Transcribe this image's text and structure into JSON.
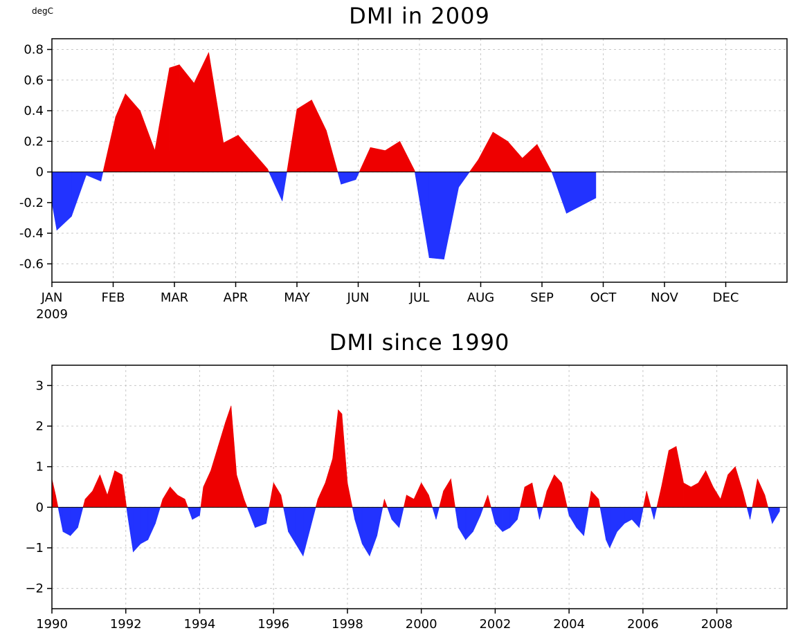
{
  "colors": {
    "positive": "#ee0000",
    "negative": "#2233ff"
  },
  "chart_data": [
    {
      "type": "area",
      "title": "DMI in 2009",
      "ylabel": "degC",
      "ylim": [
        -0.72,
        0.87
      ],
      "xlim": [
        0,
        12
      ],
      "grid": true,
      "yticks": [
        0.8,
        0.6,
        0.4,
        0.2,
        0,
        -0.2,
        -0.4,
        -0.6
      ],
      "ytick_labels": [
        "0.8",
        "0.6",
        "0.4",
        "0.2",
        "0",
        "-0.2",
        "-0.4",
        "-0.6"
      ],
      "xticks": [
        0,
        1,
        2,
        3,
        4,
        5,
        6,
        7,
        8,
        9,
        10,
        11
      ],
      "xtick_labels": [
        "JAN",
        "FEB",
        "MAR",
        "APR",
        "MAY",
        "JUN",
        "JUL",
        "AUG",
        "SEP",
        "OCT",
        "NOV",
        "DEC"
      ],
      "year_label": "2009",
      "x": [
        0.0,
        0.08,
        0.32,
        0.56,
        0.8,
        1.04,
        1.2,
        1.44,
        1.68,
        1.92,
        2.08,
        2.32,
        2.56,
        2.8,
        3.04,
        3.28,
        3.52,
        3.76,
        4.0,
        4.24,
        4.48,
        4.72,
        4.96,
        5.2,
        5.44,
        5.68,
        5.92,
        6.16,
        6.4,
        6.64,
        6.96,
        7.2,
        7.44,
        7.68,
        7.92,
        8.16,
        8.4,
        8.64,
        8.88
      ],
      "y": [
        -0.2,
        -0.38,
        -0.29,
        -0.02,
        -0.06,
        0.36,
        0.51,
        0.4,
        0.14,
        0.68,
        0.7,
        0.58,
        0.78,
        0.19,
        0.24,
        0.13,
        0.02,
        -0.19,
        0.41,
        0.47,
        0.27,
        -0.08,
        -0.05,
        0.16,
        0.14,
        0.2,
        0.01,
        -0.56,
        -0.57,
        -0.1,
        0.08,
        0.26,
        0.2,
        0.09,
        0.18,
        0.0,
        -0.27,
        -0.22,
        -0.17
      ]
    },
    {
      "type": "area",
      "title": "DMI since 1990",
      "ylim": [
        -2.5,
        3.5
      ],
      "xlim": [
        1990,
        2009.9
      ],
      "grid": true,
      "yticks": [
        3,
        2,
        1,
        0,
        -1,
        -2
      ],
      "ytick_labels": [
        "3",
        "2",
        "1",
        "0",
        "−1",
        "−2"
      ],
      "xticks": [
        1990,
        1992,
        1994,
        1996,
        1998,
        2000,
        2002,
        2004,
        2006,
        2008
      ],
      "xtick_labels": [
        "1990",
        "1992",
        "1994",
        "1996",
        "1998",
        "2000",
        "2002",
        "2004",
        "2006",
        "2008"
      ],
      "x": [
        1990.0,
        1990.1,
        1990.3,
        1990.5,
        1990.7,
        1990.9,
        1991.1,
        1991.3,
        1991.5,
        1991.7,
        1991.9,
        1992.05,
        1992.2,
        1992.4,
        1992.6,
        1992.8,
        1993.0,
        1993.2,
        1993.4,
        1993.6,
        1993.8,
        1994.0,
        1994.1,
        1994.3,
        1994.5,
        1994.7,
        1994.85,
        1995.0,
        1995.2,
        1995.5,
        1995.8,
        1996.0,
        1996.2,
        1996.4,
        1996.6,
        1996.8,
        1997.0,
        1997.2,
        1997.4,
        1997.6,
        1997.75,
        1997.85,
        1998.0,
        1998.2,
        1998.4,
        1998.6,
        1998.8,
        1999.0,
        1999.2,
        1999.4,
        1999.6,
        1999.8,
        2000.0,
        2000.2,
        2000.4,
        2000.6,
        2000.8,
        2001.0,
        2001.2,
        2001.4,
        2001.6,
        2001.8,
        2002.0,
        2002.2,
        2002.4,
        2002.6,
        2002.8,
        2003.0,
        2003.2,
        2003.4,
        2003.6,
        2003.8,
        2004.0,
        2004.2,
        2004.4,
        2004.6,
        2004.8,
        2005.0,
        2005.1,
        2005.3,
        2005.5,
        2005.7,
        2005.9,
        2006.1,
        2006.3,
        2006.5,
        2006.7,
        2006.9,
        2007.1,
        2007.3,
        2007.5,
        2007.7,
        2007.9,
        2008.1,
        2008.3,
        2008.5,
        2008.7,
        2008.9,
        2009.1,
        2009.3,
        2009.5,
        2009.7
      ],
      "y": [
        0.7,
        0.3,
        -0.6,
        -0.7,
        -0.5,
        0.2,
        0.4,
        0.8,
        0.3,
        0.9,
        0.8,
        -0.2,
        -1.1,
        -0.9,
        -0.8,
        -0.4,
        0.2,
        0.5,
        0.3,
        0.2,
        -0.3,
        -0.2,
        0.5,
        0.9,
        1.5,
        2.1,
        2.5,
        0.8,
        0.2,
        -0.5,
        -0.4,
        0.6,
        0.3,
        -0.6,
        -0.9,
        -1.2,
        -0.5,
        0.2,
        0.6,
        1.2,
        2.4,
        2.3,
        0.6,
        -0.3,
        -0.9,
        -1.2,
        -0.7,
        0.2,
        -0.3,
        -0.5,
        0.3,
        0.2,
        0.6,
        0.3,
        -0.3,
        0.4,
        0.7,
        -0.5,
        -0.8,
        -0.6,
        -0.2,
        0.3,
        -0.4,
        -0.6,
        -0.5,
        -0.3,
        0.5,
        0.6,
        -0.3,
        0.4,
        0.8,
        0.6,
        -0.2,
        -0.5,
        -0.7,
        0.4,
        0.2,
        -0.8,
        -1.0,
        -0.6,
        -0.4,
        -0.3,
        -0.5,
        0.4,
        -0.3,
        0.5,
        1.4,
        1.5,
        0.6,
        0.5,
        0.6,
        0.9,
        0.5,
        0.2,
        0.8,
        1.0,
        0.4,
        -0.3,
        0.7,
        0.3,
        -0.4,
        -0.1
      ]
    }
  ]
}
